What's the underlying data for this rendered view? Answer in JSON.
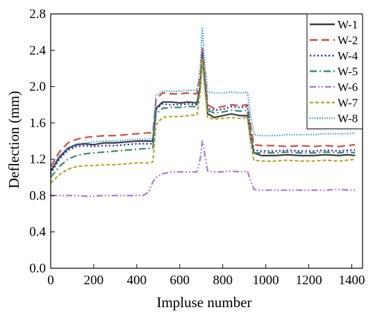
{
  "chart_data": {
    "type": "line",
    "title": "",
    "xlabel": "Impluse number",
    "ylabel": "Deflection (mm)",
    "xlim": [
      0,
      1450
    ],
    "ylim": [
      0.0,
      2.8
    ],
    "xticks": [
      0,
      200,
      400,
      600,
      800,
      1000,
      1200,
      1400
    ],
    "yticks": [
      "0.0",
      "0.4",
      "0.8",
      "1.2",
      "1.6",
      "2.0",
      "2.4",
      "2.8"
    ],
    "grid": false,
    "legend_position": "top-right",
    "series": [
      {
        "name": "W-1",
        "color": "#3a3a3a",
        "dash": "solid",
        "points": [
          [
            0,
            1.07
          ],
          [
            40,
            1.22
          ],
          [
            80,
            1.32
          ],
          [
            120,
            1.36
          ],
          [
            160,
            1.37
          ],
          [
            200,
            1.36
          ],
          [
            250,
            1.38
          ],
          [
            300,
            1.38
          ],
          [
            350,
            1.39
          ],
          [
            400,
            1.4
          ],
          [
            450,
            1.4
          ],
          [
            475,
            1.4
          ],
          [
            490,
            1.76
          ],
          [
            520,
            1.83
          ],
          [
            560,
            1.83
          ],
          [
            600,
            1.82
          ],
          [
            640,
            1.83
          ],
          [
            680,
            1.82
          ],
          [
            695,
            2.0
          ],
          [
            705,
            2.38
          ],
          [
            715,
            2.1
          ],
          [
            730,
            1.7
          ],
          [
            760,
            1.66
          ],
          [
            800,
            1.68
          ],
          [
            840,
            1.7
          ],
          [
            880,
            1.68
          ],
          [
            915,
            1.68
          ],
          [
            930,
            1.42
          ],
          [
            945,
            1.27
          ],
          [
            980,
            1.24
          ],
          [
            1040,
            1.24
          ],
          [
            1100,
            1.25
          ],
          [
            1160,
            1.24
          ],
          [
            1220,
            1.24
          ],
          [
            1280,
            1.25
          ],
          [
            1340,
            1.24
          ],
          [
            1380,
            1.25
          ],
          [
            1415,
            1.24
          ]
        ]
      },
      {
        "name": "W-2",
        "color": "#d64a3a",
        "dash": "long",
        "points": [
          [
            0,
            1.12
          ],
          [
            40,
            1.28
          ],
          [
            80,
            1.38
          ],
          [
            120,
            1.42
          ],
          [
            160,
            1.44
          ],
          [
            200,
            1.45
          ],
          [
            250,
            1.46
          ],
          [
            300,
            1.46
          ],
          [
            350,
            1.47
          ],
          [
            400,
            1.48
          ],
          [
            450,
            1.49
          ],
          [
            475,
            1.49
          ],
          [
            490,
            1.86
          ],
          [
            520,
            1.93
          ],
          [
            560,
            1.92
          ],
          [
            600,
            1.92
          ],
          [
            640,
            1.93
          ],
          [
            680,
            1.92
          ],
          [
            695,
            2.1
          ],
          [
            705,
            2.42
          ],
          [
            715,
            2.18
          ],
          [
            730,
            1.8
          ],
          [
            760,
            1.76
          ],
          [
            800,
            1.78
          ],
          [
            840,
            1.8
          ],
          [
            880,
            1.79
          ],
          [
            915,
            1.8
          ],
          [
            930,
            1.55
          ],
          [
            945,
            1.36
          ],
          [
            980,
            1.35
          ],
          [
            1040,
            1.35
          ],
          [
            1100,
            1.34
          ],
          [
            1160,
            1.35
          ],
          [
            1220,
            1.34
          ],
          [
            1280,
            1.35
          ],
          [
            1340,
            1.34
          ],
          [
            1380,
            1.35
          ],
          [
            1415,
            1.36
          ]
        ]
      },
      {
        "name": "W-4",
        "color": "#2a2ab8",
        "dash": "dot",
        "points": [
          [
            0,
            1.04
          ],
          [
            40,
            1.2
          ],
          [
            80,
            1.3
          ],
          [
            120,
            1.34
          ],
          [
            160,
            1.35
          ],
          [
            200,
            1.34
          ],
          [
            250,
            1.35
          ],
          [
            300,
            1.35
          ],
          [
            350,
            1.36
          ],
          [
            400,
            1.37
          ],
          [
            450,
            1.37
          ],
          [
            475,
            1.37
          ],
          [
            490,
            1.75
          ],
          [
            520,
            1.81
          ],
          [
            560,
            1.8
          ],
          [
            600,
            1.8
          ],
          [
            640,
            1.81
          ],
          [
            680,
            1.8
          ],
          [
            695,
            2.0
          ],
          [
            705,
            2.36
          ],
          [
            715,
            2.1
          ],
          [
            730,
            1.76
          ],
          [
            760,
            1.74
          ],
          [
            800,
            1.75
          ],
          [
            840,
            1.78
          ],
          [
            880,
            1.77
          ],
          [
            915,
            1.78
          ],
          [
            930,
            1.5
          ],
          [
            945,
            1.3
          ],
          [
            980,
            1.29
          ],
          [
            1040,
            1.29
          ],
          [
            1100,
            1.3
          ],
          [
            1160,
            1.29
          ],
          [
            1220,
            1.29
          ],
          [
            1280,
            1.3
          ],
          [
            1340,
            1.29
          ],
          [
            1380,
            1.3
          ],
          [
            1415,
            1.3
          ]
        ]
      },
      {
        "name": "W-5",
        "color": "#3a8a6a",
        "dash": "dashdot",
        "points": [
          [
            0,
            1.0
          ],
          [
            40,
            1.12
          ],
          [
            80,
            1.2
          ],
          [
            120,
            1.24
          ],
          [
            160,
            1.26
          ],
          [
            200,
            1.27
          ],
          [
            250,
            1.28
          ],
          [
            300,
            1.29
          ],
          [
            350,
            1.3
          ],
          [
            400,
            1.31
          ],
          [
            450,
            1.32
          ],
          [
            475,
            1.32
          ],
          [
            490,
            1.7
          ],
          [
            520,
            1.76
          ],
          [
            560,
            1.77
          ],
          [
            600,
            1.77
          ],
          [
            640,
            1.78
          ],
          [
            680,
            1.78
          ],
          [
            695,
            1.98
          ],
          [
            705,
            2.32
          ],
          [
            715,
            2.05
          ],
          [
            730,
            1.74
          ],
          [
            760,
            1.71
          ],
          [
            800,
            1.72
          ],
          [
            840,
            1.74
          ],
          [
            880,
            1.73
          ],
          [
            915,
            1.74
          ],
          [
            930,
            1.45
          ],
          [
            945,
            1.27
          ],
          [
            980,
            1.27
          ],
          [
            1040,
            1.27
          ],
          [
            1100,
            1.28
          ],
          [
            1160,
            1.27
          ],
          [
            1220,
            1.27
          ],
          [
            1280,
            1.28
          ],
          [
            1340,
            1.27
          ],
          [
            1380,
            1.28
          ],
          [
            1415,
            1.27
          ]
        ]
      },
      {
        "name": "W-6",
        "color": "#a77ae0",
        "dash": "dashdotdot",
        "points": [
          [
            0,
            0.8
          ],
          [
            60,
            0.8
          ],
          [
            120,
            0.8
          ],
          [
            180,
            0.79
          ],
          [
            240,
            0.8
          ],
          [
            300,
            0.8
          ],
          [
            360,
            0.8
          ],
          [
            400,
            0.8
          ],
          [
            430,
            0.8
          ],
          [
            455,
            0.84
          ],
          [
            475,
            0.95
          ],
          [
            490,
            1.0
          ],
          [
            520,
            1.04
          ],
          [
            560,
            1.06
          ],
          [
            600,
            1.06
          ],
          [
            640,
            1.06
          ],
          [
            680,
            1.06
          ],
          [
            695,
            1.2
          ],
          [
            705,
            1.4
          ],
          [
            715,
            1.28
          ],
          [
            730,
            1.07
          ],
          [
            760,
            1.06
          ],
          [
            800,
            1.06
          ],
          [
            840,
            1.07
          ],
          [
            880,
            1.06
          ],
          [
            915,
            1.07
          ],
          [
            930,
            0.96
          ],
          [
            945,
            0.87
          ],
          [
            980,
            0.86
          ],
          [
            1040,
            0.86
          ],
          [
            1100,
            0.86
          ],
          [
            1160,
            0.86
          ],
          [
            1220,
            0.86
          ],
          [
            1280,
            0.86
          ],
          [
            1340,
            0.87
          ],
          [
            1380,
            0.86
          ],
          [
            1415,
            0.86
          ]
        ]
      },
      {
        "name": "W-7",
        "color": "#b8a82a",
        "dash": "short",
        "points": [
          [
            0,
            0.94
          ],
          [
            40,
            1.03
          ],
          [
            80,
            1.09
          ],
          [
            120,
            1.12
          ],
          [
            160,
            1.13
          ],
          [
            200,
            1.13
          ],
          [
            250,
            1.14
          ],
          [
            300,
            1.14
          ],
          [
            350,
            1.15
          ],
          [
            400,
            1.16
          ],
          [
            450,
            1.16
          ],
          [
            475,
            1.17
          ],
          [
            490,
            1.58
          ],
          [
            520,
            1.66
          ],
          [
            560,
            1.67
          ],
          [
            600,
            1.67
          ],
          [
            640,
            1.68
          ],
          [
            680,
            1.69
          ],
          [
            695,
            1.92
          ],
          [
            705,
            2.3
          ],
          [
            715,
            2.0
          ],
          [
            730,
            1.66
          ],
          [
            760,
            1.64
          ],
          [
            800,
            1.65
          ],
          [
            840,
            1.66
          ],
          [
            880,
            1.65
          ],
          [
            915,
            1.66
          ],
          [
            930,
            1.38
          ],
          [
            945,
            1.19
          ],
          [
            980,
            1.18
          ],
          [
            1040,
            1.18
          ],
          [
            1100,
            1.19
          ],
          [
            1160,
            1.18
          ],
          [
            1220,
            1.18
          ],
          [
            1280,
            1.19
          ],
          [
            1340,
            1.18
          ],
          [
            1380,
            1.19
          ],
          [
            1415,
            1.2
          ]
        ]
      },
      {
        "name": "W-8",
        "color": "#3a9ad9",
        "dash": "tinydot",
        "points": [
          [
            0,
            1.1
          ],
          [
            40,
            1.24
          ],
          [
            80,
            1.33
          ],
          [
            120,
            1.37
          ],
          [
            160,
            1.38
          ],
          [
            200,
            1.39
          ],
          [
            250,
            1.4
          ],
          [
            300,
            1.4
          ],
          [
            350,
            1.41
          ],
          [
            400,
            1.42
          ],
          [
            450,
            1.42
          ],
          [
            475,
            1.43
          ],
          [
            490,
            1.9
          ],
          [
            520,
            1.95
          ],
          [
            560,
            1.95
          ],
          [
            600,
            1.95
          ],
          [
            640,
            1.96
          ],
          [
            680,
            1.96
          ],
          [
            695,
            2.2
          ],
          [
            705,
            2.64
          ],
          [
            715,
            2.3
          ],
          [
            730,
            1.94
          ],
          [
            760,
            1.93
          ],
          [
            800,
            1.93
          ],
          [
            840,
            1.94
          ],
          [
            880,
            1.93
          ],
          [
            915,
            1.94
          ],
          [
            930,
            1.68
          ],
          [
            945,
            1.47
          ],
          [
            980,
            1.46
          ],
          [
            1040,
            1.46
          ],
          [
            1100,
            1.47
          ],
          [
            1160,
            1.47
          ],
          [
            1220,
            1.47
          ],
          [
            1280,
            1.48
          ],
          [
            1340,
            1.48
          ],
          [
            1380,
            1.48
          ],
          [
            1415,
            1.49
          ]
        ]
      }
    ]
  }
}
